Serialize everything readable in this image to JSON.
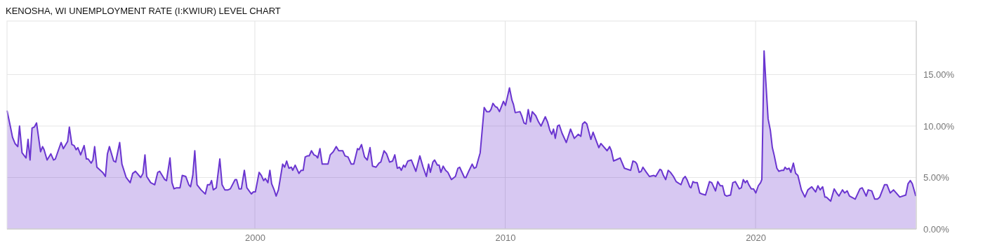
{
  "chart_data": {
    "type": "area",
    "title": "KENOSHA, WI UNEMPLOYMENT RATE (I:KWIUR) LEVEL CHART",
    "xlim": [
      1990.1,
      2026.42
    ],
    "xticks": [
      2000,
      2010,
      2020
    ],
    "ylim": [
      0,
      20.2
    ],
    "yticks": [
      {
        "value": 0,
        "label": "0.00%"
      },
      {
        "value": 5,
        "label": "5.00%"
      },
      {
        "value": 10,
        "label": "10.00%"
      },
      {
        "value": 15,
        "label": "15.00%"
      }
    ],
    "grid": true,
    "color": "#6a35d0",
    "x": [
      1990.1,
      1990.23,
      1990.32,
      1990.42,
      1990.53,
      1990.6,
      1990.7,
      1990.86,
      1990.94,
      1991.02,
      1991.1,
      1991.19,
      1991.28,
      1991.44,
      1991.52,
      1991.58,
      1991.7,
      1991.85,
      1991.96,
      1992.03,
      1992.26,
      1992.35,
      1992.52,
      1992.59,
      1992.69,
      1992.78,
      1992.86,
      1992.93,
      1993.04,
      1993.18,
      1993.27,
      1993.34,
      1993.46,
      1993.53,
      1993.6,
      1993.69,
      1993.92,
      1994.03,
      1994.11,
      1994.19,
      1994.36,
      1994.44,
      1994.6,
      1994.69,
      1994.86,
      1995.02,
      1995.12,
      1995.23,
      1995.44,
      1995.53,
      1995.61,
      1995.68,
      1995.84,
      1996.0,
      1996.12,
      1996.2,
      1996.4,
      1996.47,
      1996.61,
      1996.69,
      1996.77,
      1996.87,
      1997.01,
      1997.1,
      1997.24,
      1997.36,
      1997.43,
      1997.52,
      1997.6,
      1997.69,
      1997.85,
      1998.02,
      1998.11,
      1998.2,
      1998.27,
      1998.34,
      1998.46,
      1998.6,
      1998.69,
      1998.8,
      1998.93,
      1999.02,
      1999.21,
      1999.27,
      1999.37,
      1999.46,
      1999.58,
      1999.68,
      1999.86,
      1999.94,
      2000.02,
      2000.17,
      2000.26,
      2000.35,
      2000.42,
      2000.52,
      2000.6,
      2000.67,
      2000.77,
      2000.85,
      2000.94,
      2001.11,
      2001.19,
      2001.27,
      2001.36,
      2001.46,
      2001.51,
      2001.61,
      2001.76,
      2001.85,
      2001.93,
      2002.01,
      2002.1,
      2002.17,
      2002.26,
      2002.36,
      2002.45,
      2002.51,
      2002.6,
      2002.69,
      2002.76,
      2002.82,
      2002.92,
      2003.01,
      2003.13,
      2003.25,
      2003.35,
      2003.51,
      2003.6,
      2003.72,
      2003.85,
      2003.95,
      2004.1,
      2004.16,
      2004.26,
      2004.38,
      2004.49,
      2004.6,
      2004.7,
      2004.84,
      2004.96,
      2005.03,
      2005.16,
      2005.26,
      2005.38,
      2005.5,
      2005.59,
      2005.69,
      2005.78,
      2005.85,
      2005.94,
      2006.0,
      2006.11,
      2006.25,
      2006.43,
      2006.59,
      2006.72,
      2006.85,
      2006.94,
      2007.01,
      2007.11,
      2007.18,
      2007.29,
      2007.36,
      2007.43,
      2007.52,
      2007.62,
      2007.71,
      2007.85,
      2008.01,
      2008.11,
      2008.18,
      2008.37,
      2008.43,
      2008.56,
      2008.68,
      2008.76,
      2008.84,
      2008.93,
      2009.0,
      2009.16,
      2009.26,
      2009.37,
      2009.43,
      2009.51,
      2009.6,
      2009.68,
      2009.77,
      2009.93,
      2010.01,
      2010.17,
      2010.27,
      2010.33,
      2010.4,
      2010.59,
      2010.66,
      2010.75,
      2010.83,
      2010.92,
      2011.01,
      2011.08,
      2011.22,
      2011.33,
      2011.43,
      2011.6,
      2011.69,
      2011.78,
      2011.86,
      2011.93,
      2012.0,
      2012.09,
      2012.16,
      2012.27,
      2012.44,
      2012.61,
      2012.76,
      2012.92,
      2013.02,
      2013.09,
      2013.18,
      2013.26,
      2013.42,
      2013.51,
      2013.6,
      2013.74,
      2013.82,
      2014.07,
      2014.17,
      2014.24,
      2014.33,
      2014.42,
      2014.59,
      2014.76,
      2015.01,
      2015.1,
      2015.2,
      2015.26,
      2015.35,
      2015.43,
      2015.5,
      2015.64,
      2015.76,
      2015.94,
      2016.01,
      2016.18,
      2016.24,
      2016.32,
      2016.41,
      2016.51,
      2016.6,
      2016.72,
      2016.83,
      2017.02,
      2017.11,
      2017.19,
      2017.26,
      2017.37,
      2017.42,
      2017.5,
      2017.58,
      2017.67,
      2017.77,
      2017.86,
      2018.0,
      2018.16,
      2018.25,
      2018.4,
      2018.49,
      2018.59,
      2018.68,
      2018.77,
      2018.84,
      2019.0,
      2019.09,
      2019.19,
      2019.26,
      2019.35,
      2019.43,
      2019.51,
      2019.59,
      2019.66,
      2019.73,
      2019.83,
      2019.92,
      2020.01,
      2020.11,
      2020.2,
      2020.25,
      2020.34,
      2020.41,
      2020.5,
      2020.59,
      2020.67,
      2020.74,
      2020.85,
      2020.93,
      2021.04,
      2021.12,
      2021.18,
      2021.25,
      2021.34,
      2021.41,
      2021.51,
      2021.6,
      2021.69,
      2021.83,
      2021.97,
      2022.09,
      2022.24,
      2022.4,
      2022.49,
      2022.58,
      2022.68,
      2022.77,
      2022.83,
      2023.0,
      2023.14,
      2023.24,
      2023.33,
      2023.47,
      2023.56,
      2023.66,
      2023.75,
      2023.98,
      2024.17,
      2024.26,
      2024.42,
      2024.5,
      2024.64,
      2024.76,
      2024.87,
      2024.96,
      2025.15,
      2025.25,
      2025.38,
      2025.51,
      2025.62,
      2025.76,
      2026.0,
      2026.09,
      2026.18,
      2026.26,
      2026.4
    ],
    "values": [
      11.5,
      10.0,
      8.9,
      8.3,
      8.0,
      10.0,
      7.4,
      6.9,
      8.7,
      6.7,
      9.8,
      9.9,
      10.3,
      7.5,
      8.0,
      7.7,
      6.7,
      7.3,
      6.7,
      6.8,
      8.4,
      7.8,
      8.5,
      9.9,
      8.2,
      8.1,
      7.7,
      7.9,
      7.2,
      8.1,
      6.8,
      6.8,
      6.4,
      6.7,
      8.0,
      6.0,
      5.5,
      5.1,
      7.3,
      8.0,
      6.6,
      6.5,
      8.4,
      6.3,
      5.0,
      4.5,
      5.4,
      5.6,
      5.0,
      5.4,
      7.2,
      5.1,
      4.5,
      4.3,
      5.5,
      5.6,
      4.8,
      4.7,
      6.9,
      4.5,
      3.9,
      4.0,
      4.0,
      5.2,
      5.1,
      4.3,
      4.1,
      5.2,
      7.6,
      4.3,
      3.8,
      3.4,
      4.3,
      4.3,
      4.7,
      3.8,
      4.0,
      6.8,
      4.3,
      3.8,
      3.8,
      3.9,
      4.8,
      4.8,
      3.9,
      3.9,
      5.7,
      4.0,
      3.4,
      3.6,
      3.6,
      5.5,
      5.2,
      4.7,
      4.9,
      4.5,
      5.7,
      4.4,
      3.8,
      3.2,
      3.8,
      6.3,
      6.0,
      6.6,
      5.9,
      6.0,
      5.7,
      6.2,
      5.4,
      5.7,
      5.7,
      7.0,
      7.1,
      7.1,
      7.6,
      7.2,
      7.1,
      6.9,
      7.8,
      6.3,
      6.3,
      6.3,
      6.3,
      7.2,
      7.5,
      8.0,
      7.6,
      7.6,
      7.1,
      7.0,
      6.3,
      6.3,
      7.8,
      7.7,
      8.2,
      7.0,
      6.7,
      7.9,
      6.1,
      6.0,
      6.4,
      6.5,
      7.6,
      7.3,
      6.5,
      6.6,
      7.2,
      5.9,
      6.0,
      5.7,
      6.2,
      6.0,
      6.6,
      6.7,
      5.6,
      7.1,
      6.0,
      5.1,
      6.3,
      5.5,
      6.5,
      6.7,
      6.2,
      6.2,
      5.5,
      6.1,
      5.7,
      5.5,
      4.8,
      5.1,
      5.9,
      6.0,
      5.0,
      5.0,
      5.7,
      6.3,
      5.9,
      6.0,
      6.8,
      7.4,
      11.8,
      11.4,
      11.4,
      11.6,
      12.2,
      11.9,
      11.8,
      11.4,
      12.4,
      12.0,
      13.7,
      12.5,
      12.1,
      11.3,
      11.4,
      11.0,
      10.3,
      10.2,
      11.6,
      10.4,
      11.4,
      11.0,
      10.4,
      10.0,
      10.9,
      10.4,
      9.6,
      9.2,
      9.7,
      8.8,
      10.0,
      10.1,
      9.3,
      8.4,
      9.7,
      8.8,
      9.2,
      9.0,
      10.2,
      10.4,
      10.2,
      8.7,
      9.4,
      8.8,
      7.9,
      8.3,
      7.6,
      8.0,
      7.6,
      6.6,
      6.7,
      6.9,
      5.9,
      5.7,
      6.6,
      6.5,
      6.3,
      5.5,
      5.6,
      6.0,
      5.5,
      5.1,
      5.2,
      5.1,
      5.8,
      5.7,
      5.2,
      4.8,
      5.7,
      5.5,
      5.1,
      4.6,
      4.3,
      4.9,
      5.1,
      4.8,
      4.1,
      4.0,
      4.6,
      4.5,
      4.5,
      3.5,
      3.4,
      3.3,
      4.6,
      4.5,
      3.7,
      4.6,
      4.2,
      4.2,
      3.3,
      3.2,
      3.3,
      4.5,
      4.6,
      4.3,
      3.9,
      4.0,
      4.8,
      4.5,
      4.7,
      4.3,
      3.9,
      3.9,
      3.5,
      4.2,
      4.5,
      4.8,
      17.3,
      14.3,
      10.7,
      9.6,
      7.9,
      7.2,
      5.9,
      5.6,
      5.7,
      5.7,
      6.0,
      5.8,
      5.9,
      5.5,
      6.4,
      5.4,
      5.2,
      3.8,
      3.1,
      3.8,
      4.1,
      3.6,
      4.2,
      3.8,
      4.1,
      3.1,
      3.1,
      2.7,
      3.9,
      3.5,
      3.2,
      3.8,
      3.5,
      3.7,
      3.2,
      2.9,
      3.9,
      4.0,
      3.2,
      3.8,
      3.7,
      2.9,
      2.9,
      3.1,
      4.3,
      4.3,
      3.5,
      3.8,
      3.5,
      3.1,
      3.3,
      4.4,
      4.7,
      4.4,
      3.2
    ]
  }
}
